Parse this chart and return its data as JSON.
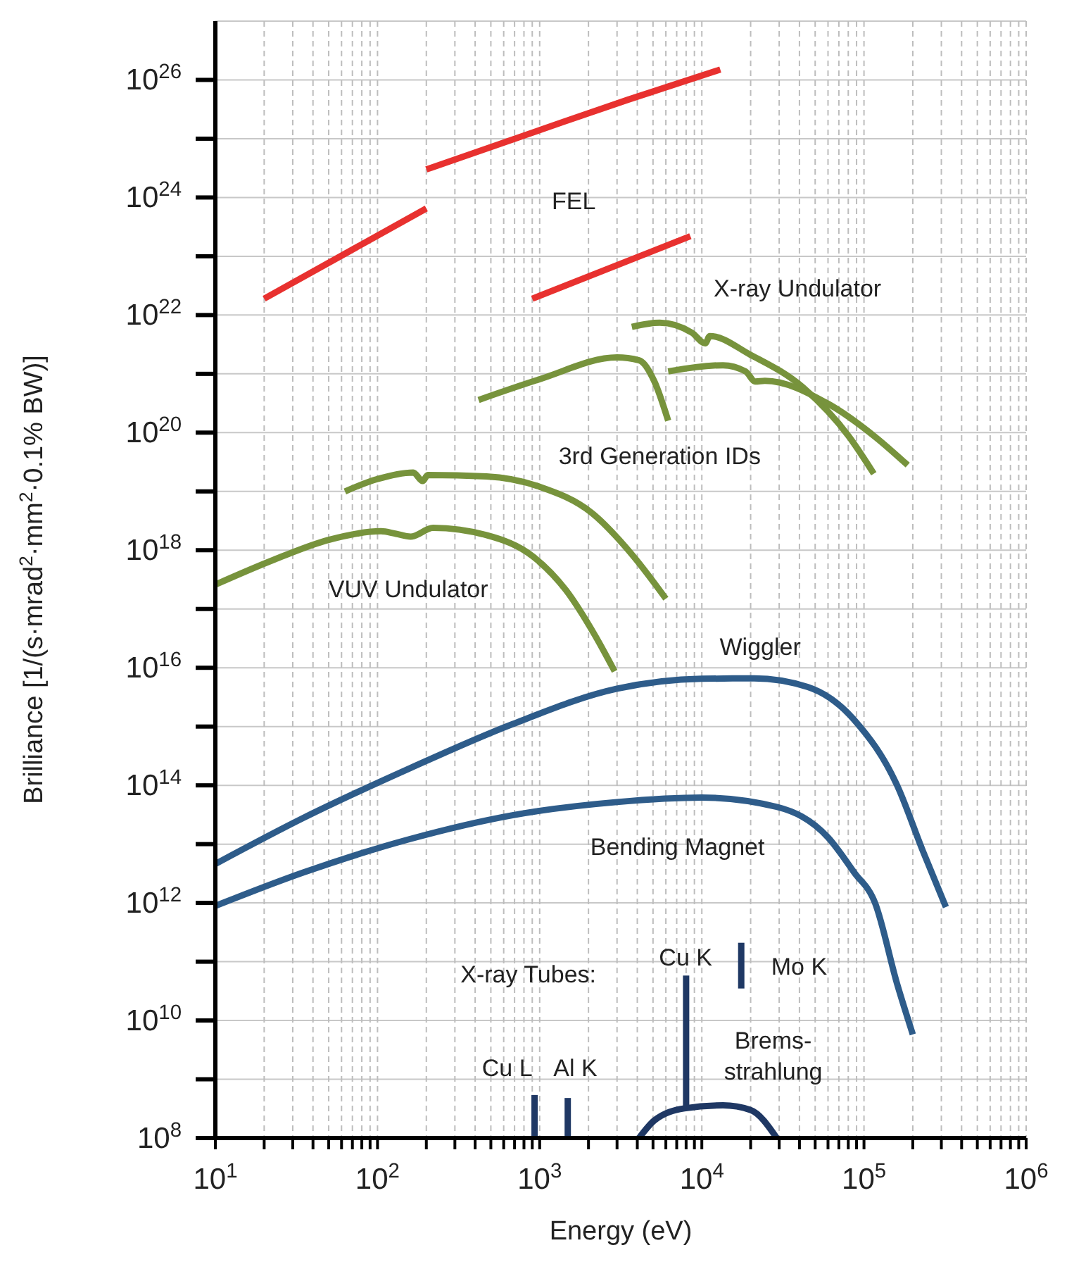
{
  "chart_data": {
    "type": "line",
    "xlabel": "Energy (eV)",
    "ylabel": "Brilliance [1/(s·mrad$^{2}$·mm$^{2}$·0.1% BW)]",
    "log": "xy",
    "grid": true,
    "marker": "none",
    "line_style": "solid",
    "xlim": [
      10,
      1000000
    ],
    "ylim": [
      100000000.0,
      1e+27
    ],
    "xticks": [
      {
        "value": 10,
        "label": "10$^{1}$"
      },
      {
        "value": 20,
        "label": null
      },
      {
        "value": 30,
        "label": null
      },
      {
        "value": 40,
        "label": null
      },
      {
        "value": 50,
        "label": null
      },
      {
        "value": 60,
        "label": null
      },
      {
        "value": 70,
        "label": null
      },
      {
        "value": 80,
        "label": null
      },
      {
        "value": 90,
        "label": null
      },
      {
        "value": 100,
        "label": "10$^{2}$"
      },
      {
        "value": 200,
        "label": null
      },
      {
        "value": 300,
        "label": null
      },
      {
        "value": 400,
        "label": null
      },
      {
        "value": 500,
        "label": null
      },
      {
        "value": 600,
        "label": null
      },
      {
        "value": 700,
        "label": null
      },
      {
        "value": 800,
        "label": null
      },
      {
        "value": 900,
        "label": null
      },
      {
        "value": 1000,
        "label": "10$^{3}$"
      },
      {
        "value": 2000,
        "label": null
      },
      {
        "value": 3000,
        "label": null
      },
      {
        "value": 4000,
        "label": null
      },
      {
        "value": 5000,
        "label": null
      },
      {
        "value": 6000,
        "label": null
      },
      {
        "value": 7000,
        "label": null
      },
      {
        "value": 8000,
        "label": null
      },
      {
        "value": 9000,
        "label": null
      },
      {
        "value": 10000,
        "label": "10$^{4}$"
      },
      {
        "value": 20000,
        "label": null
      },
      {
        "value": 30000,
        "label": null
      },
      {
        "value": 40000,
        "label": null
      },
      {
        "value": 50000,
        "label": null
      },
      {
        "value": 60000,
        "label": null
      },
      {
        "value": 70000,
        "label": null
      },
      {
        "value": 80000,
        "label": null
      },
      {
        "value": 90000,
        "label": null
      },
      {
        "value": 100000,
        "label": "10$^{5}$"
      },
      {
        "value": 200000,
        "label": null
      },
      {
        "value": 300000,
        "label": null
      },
      {
        "value": 400000,
        "label": null
      },
      {
        "value": 500000,
        "label": null
      },
      {
        "value": 600000,
        "label": null
      },
      {
        "value": 700000,
        "label": null
      },
      {
        "value": 800000,
        "label": null
      },
      {
        "value": 900000,
        "label": null
      },
      {
        "value": 1000000,
        "label": "10$^{6}$"
      }
    ],
    "yticks": [
      {
        "value": 100000000.0,
        "label": "10$^{8}$"
      },
      {
        "value": 1000000000.0,
        "label": null
      },
      {
        "value": 10000000000.0,
        "label": "10$^{10}$"
      },
      {
        "value": 100000000000.0,
        "label": null
      },
      {
        "value": 1000000000000.0,
        "label": "10$^{12}$"
      },
      {
        "value": 10000000000000.0,
        "label": null
      },
      {
        "value": 100000000000000.0,
        "label": "10$^{14}$"
      },
      {
        "value": 1000000000000000.0,
        "label": null
      },
      {
        "value": 1e+16,
        "label": "10$^{16}$"
      },
      {
        "value": 1e+17,
        "label": null
      },
      {
        "value": 1e+18,
        "label": "10$^{18}$"
      },
      {
        "value": 1e+19,
        "label": null
      },
      {
        "value": 1e+20,
        "label": "10$^{20}$"
      },
      {
        "value": 1e+21,
        "label": null
      },
      {
        "value": 1e+22,
        "label": "10$^{22}$"
      },
      {
        "value": 1e+23,
        "label": null
      },
      {
        "value": 1e+24,
        "label": "10$^{24}$"
      },
      {
        "value": 1e+25,
        "label": null
      },
      {
        "value": 1e+26,
        "label": "10$^{26}$"
      }
    ],
    "series": [
      {
        "color": "#e8312f",
        "x": [
          20,
          200
        ],
        "values": [
          1.9e+22,
          6.5e+23
        ]
      },
      {
        "color": "#e8312f",
        "x": [
          200,
          1000,
          3500,
          13000
        ],
        "values": [
          3e+24,
          1.4e+25,
          4.6e+25,
          1.5e+26
        ]
      },
      {
        "color": "#e8312f",
        "x": [
          900,
          8500
        ],
        "values": [
          1.9e+22,
          2.2e+23
        ]
      },
      {
        "color": "#77933c",
        "x": [
          420,
          1000,
          3000,
          4100,
          5100,
          6200
        ],
        "values": [
          3.6e+20,
          8.1e+20,
          1.9e+21,
          1.7e+21,
          7.4e+20,
          1.6e+20
        ]
      },
      {
        "color": "#77933c",
        "x": [
          3700,
          5500,
          8700,
          10500,
          11200,
          20000,
          42000,
          81000,
          115000
        ],
        "values": [
          6.3e+21,
          7.4e+21,
          5e+21,
          3.3e+21,
          4.4e+21,
          2.1e+21,
          5.9e+20,
          8.5e+19,
          2e+19
        ]
      },
      {
        "color": "#77933c",
        "x": [
          6200,
          13500,
          18600,
          21400,
          24500,
          60000,
          117000,
          186000
        ],
        "values": [
          1.1e+21,
          1.4e+21,
          1.1e+21,
          7.4e+20,
          7.6e+20,
          3.1e+20,
          8.5e+19,
          2.8e+19
        ]
      },
      {
        "color": "#77933c",
        "x": [
          63,
          98,
          166,
          190,
          204,
          470,
          1000,
          2100,
          3800,
          6000
        ],
        "values": [
          1e+19,
          1.6e+19,
          2.1e+19,
          1.5e+19,
          1.9e+19,
          1.8e+19,
          1.2e+19,
          4.3e+18,
          7.8e+17,
          1.5e+17
        ]
      },
      {
        "color": "#77933c",
        "x": [
          10,
          23,
          50,
          105,
          130,
          160,
          220,
          470,
          910,
          1450,
          2200,
          2900
        ],
        "values": [
          2.6e+17,
          6.9e+17,
          1.5e+18,
          2.1e+18,
          1.9e+18,
          1.7e+18,
          2.4e+18,
          1.8e+18,
          7.8e+17,
          2.1e+17,
          3.5e+16,
          8700000000000000.0
        ]
      },
      {
        "color": "#2e5c8a",
        "x": [
          10,
          35,
          155,
          680,
          3000,
          10000,
          21000,
          45000,
          87000,
          160000,
          230000,
          320000
        ],
        "values": [
          4600000000000.0,
          28000000000000.0,
          190000000000000.0,
          1100000000000000.0,
          4400000000000000.0,
          6500000000000000.0,
          6600000000000000.0,
          4700000000000000.0,
          1300000000000000.0,
          100000000000000.0,
          7800000000000.0,
          850000000000.0
        ]
      },
      {
        "color": "#2e5c8a",
        "x": [
          10,
          35,
          155,
          680,
          3000,
          10000,
          29000,
          60000,
          87000,
          117000,
          160000,
          200000
        ],
        "values": [
          890000000000.0,
          3300000000000.0,
          12000000000000.0,
          31000000000000.0,
          52000000000000.0,
          62000000000000.0,
          43000000000000.0,
          13000000000000.0,
          3300000000000.0,
          1000000000000.0,
          42000000000.0,
          5800000000.0
        ]
      },
      {
        "color": "#1f3864",
        "x": [
          4100,
          5100,
          7800,
          13500,
          20000,
          29000
        ],
        "values": [
          100000000.0,
          200000000.0,
          320000000.0,
          360000000.0,
          300000000.0,
          100000000.0
        ]
      },
      {
        "color": "#1f3864",
        "x": [
          8000,
          8000
        ],
        "values": [
          320000000.0,
          58000000000.0
        ]
      },
      {
        "color": "#1f3864",
        "x": [
          17500,
          17500
        ],
        "values": [
          35000000000.0,
          210000000000.0
        ]
      },
      {
        "color": "#1f3864",
        "x": [
          930,
          930
        ],
        "values": [
          100000000.0,
          540000000.0
        ]
      },
      {
        "color": "#1f3864",
        "x": [
          1490,
          1490
        ],
        "values": [
          100000000.0,
          480000000.0
        ]
      }
    ],
    "annotations": [
      "FEL",
      "X-ray Undulator",
      "3rd Generation IDs",
      "VUV Undulator",
      "Wiggler",
      "Bending Magnet",
      "X-ray Tubes:",
      "Cu K",
      "Mo K",
      "Cu L",
      "Al K",
      "Brems-\nstrahlung"
    ]
  }
}
